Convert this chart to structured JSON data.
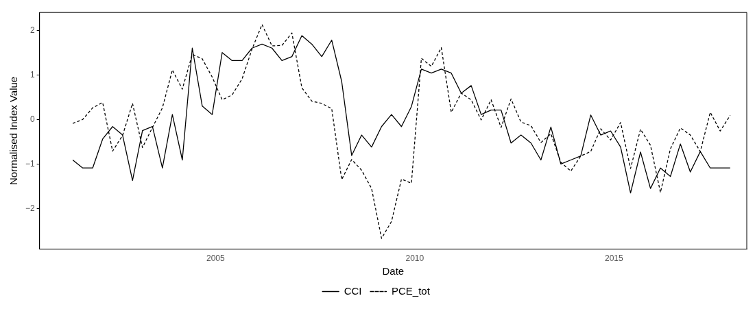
{
  "chart_data": {
    "type": "line",
    "xlabel": "Date",
    "ylabel": "Normalised Index Value",
    "x": [
      "2001-06",
      "2001-09",
      "2001-12",
      "2002-03",
      "2002-06",
      "2002-09",
      "2002-12",
      "2003-03",
      "2003-06",
      "2003-09",
      "2003-12",
      "2004-03",
      "2004-06",
      "2004-09",
      "2004-12",
      "2005-03",
      "2005-06",
      "2005-09",
      "2005-12",
      "2006-03",
      "2006-06",
      "2006-09",
      "2006-12",
      "2007-03",
      "2007-06",
      "2007-09",
      "2007-12",
      "2008-03",
      "2008-06",
      "2008-09",
      "2008-12",
      "2009-03",
      "2009-06",
      "2009-09",
      "2009-12",
      "2010-03",
      "2010-06",
      "2010-09",
      "2010-12",
      "2011-03",
      "2011-06",
      "2011-09",
      "2011-12",
      "2012-03",
      "2012-06",
      "2012-09",
      "2012-12",
      "2013-03",
      "2013-06",
      "2013-09",
      "2013-12",
      "2014-03",
      "2014-06",
      "2014-09",
      "2014-12",
      "2015-03",
      "2015-06",
      "2015-09",
      "2015-12",
      "2016-03",
      "2016-06",
      "2016-09",
      "2016-12",
      "2017-03",
      "2017-06",
      "2017-09",
      "2017-12"
    ],
    "series": [
      {
        "name": "CCI",
        "color": "#000000",
        "line_style": "solid",
        "values": [
          -0.91,
          -1.09,
          -1.09,
          -0.44,
          -0.16,
          -0.35,
          -1.37,
          -0.25,
          -0.16,
          -1.09,
          0.11,
          -0.91,
          1.6,
          0.3,
          0.11,
          1.5,
          1.32,
          1.32,
          1.6,
          1.69,
          1.6,
          1.32,
          1.41,
          1.88,
          1.69,
          1.41,
          1.78,
          0.85,
          -0.81,
          -0.35,
          -0.62,
          -0.16,
          0.11,
          -0.16,
          0.29,
          1.13,
          1.04,
          1.13,
          1.04,
          0.59,
          0.76,
          0.11,
          0.21,
          0.21,
          -0.53,
          -0.35,
          -0.53,
          -0.91,
          -0.17,
          -1.0,
          -0.91,
          -0.82,
          0.1,
          -0.35,
          -0.26,
          -0.62,
          -1.65,
          -0.73,
          -1.55,
          -1.09,
          -1.28,
          -0.55,
          -1.18,
          -0.72,
          -1.09,
          -1.09,
          -1.09
        ]
      },
      {
        "name": "PCE_tot",
        "color": "#000000",
        "line_style": "dashed",
        "values": [
          -0.09,
          0.0,
          0.26,
          0.38,
          -0.71,
          -0.36,
          0.36,
          -0.63,
          -0.18,
          0.26,
          1.11,
          0.68,
          1.46,
          1.36,
          0.95,
          0.44,
          0.55,
          0.91,
          1.58,
          2.13,
          1.65,
          1.66,
          1.94,
          0.71,
          0.41,
          0.36,
          0.24,
          -1.35,
          -0.9,
          -1.14,
          -1.55,
          -2.67,
          -2.29,
          -1.34,
          -1.43,
          1.37,
          1.19,
          1.61,
          0.16,
          0.59,
          0.44,
          -0.01,
          0.44,
          -0.18,
          0.46,
          -0.06,
          -0.14,
          -0.52,
          -0.32,
          -0.96,
          -1.16,
          -0.82,
          -0.72,
          -0.21,
          -0.46,
          -0.07,
          -1.1,
          -0.22,
          -0.58,
          -1.64,
          -0.66,
          -0.19,
          -0.35,
          -0.72,
          0.16,
          -0.26,
          0.09
        ]
      }
    ],
    "xlim": [
      "2000-08",
      "2018-05"
    ],
    "xticks": [
      "2005",
      "2010",
      "2015"
    ],
    "ylim": [
      -2.91,
      2.4
    ],
    "yticks": [
      {
        "value": -2,
        "label": "−2"
      },
      {
        "value": -1,
        "label": "−1"
      },
      0,
      1,
      2
    ],
    "legend": "bottom",
    "marker": "none"
  }
}
